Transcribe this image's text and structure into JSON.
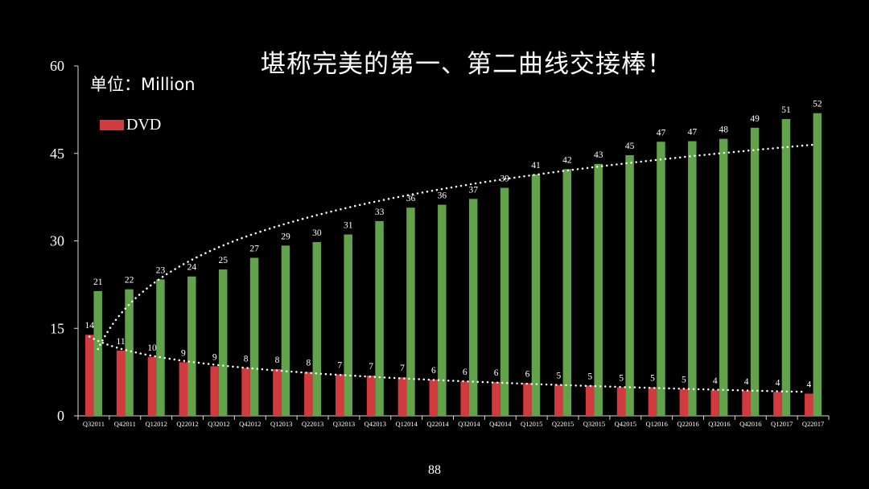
{
  "slide": {
    "title": "堪称完美的第一、第二曲线交接棒！",
    "unit_label": "单位：Million",
    "page_number": "88"
  },
  "colors": {
    "background": "#000000",
    "dvd": "#d13a3e",
    "streaming": "#62a24a",
    "axis": "#d9d9d9",
    "trendline": "#ffffff"
  },
  "chart_data": {
    "type": "bar",
    "title": "堪称完美的第一、第二曲线交接棒！",
    "ylabel": "单位：Million",
    "ylim": [
      0,
      60
    ],
    "yticks": [
      0,
      15,
      30,
      45,
      60
    ],
    "grid": false,
    "legend_position": "top-left",
    "categories": [
      "Q32011",
      "Q42011",
      "Q12012",
      "Q22012",
      "Q32012",
      "Q42012",
      "Q12013",
      "Q22013",
      "Q32013",
      "Q42013",
      "Q12014",
      "Q22014",
      "Q32014",
      "Q42014",
      "Q12015",
      "Q22015",
      "Q32015",
      "Q42015",
      "Q12016",
      "Q22016",
      "Q32016",
      "Q42016",
      "Q12017",
      "Q22017"
    ],
    "series": [
      {
        "name": "DVD",
        "legend": true,
        "color": "#d13a3e",
        "values": [
          13.9,
          11.2,
          10.1,
          9.2,
          8.5,
          8.2,
          8.0,
          7.5,
          7.1,
          6.9,
          6.6,
          6.2,
          5.9,
          5.8,
          5.6,
          5.3,
          5.2,
          4.9,
          4.9,
          4.6,
          4.4,
          4.3,
          4.1,
          3.8
        ],
        "labels": [
          "14",
          "11",
          "10",
          "9",
          "9",
          "8",
          "8",
          "8",
          "7",
          "7",
          "7",
          "6",
          "6",
          "6",
          "6",
          "5",
          "5",
          "5",
          "5",
          "5",
          "4",
          "4",
          "4",
          "4"
        ],
        "trendline": "dotted"
      },
      {
        "legend": false,
        "color": "#62a24a",
        "values": [
          21.4,
          21.7,
          23.4,
          23.9,
          25.1,
          27.1,
          29.2,
          29.8,
          31.1,
          33.4,
          35.7,
          36.2,
          37.2,
          39.1,
          41.4,
          42.3,
          43.2,
          44.7,
          47.0,
          47.1,
          47.5,
          49.4,
          50.9,
          51.9
        ],
        "labels": [
          "21",
          "22",
          "23",
          "24",
          "25",
          "27",
          "29",
          "30",
          "31",
          "33",
          "36",
          "36",
          "37",
          "39",
          "41",
          "42",
          "43",
          "45",
          "47",
          "47",
          "48",
          "49",
          "51",
          "52"
        ],
        "trendline": "dotted"
      }
    ]
  }
}
